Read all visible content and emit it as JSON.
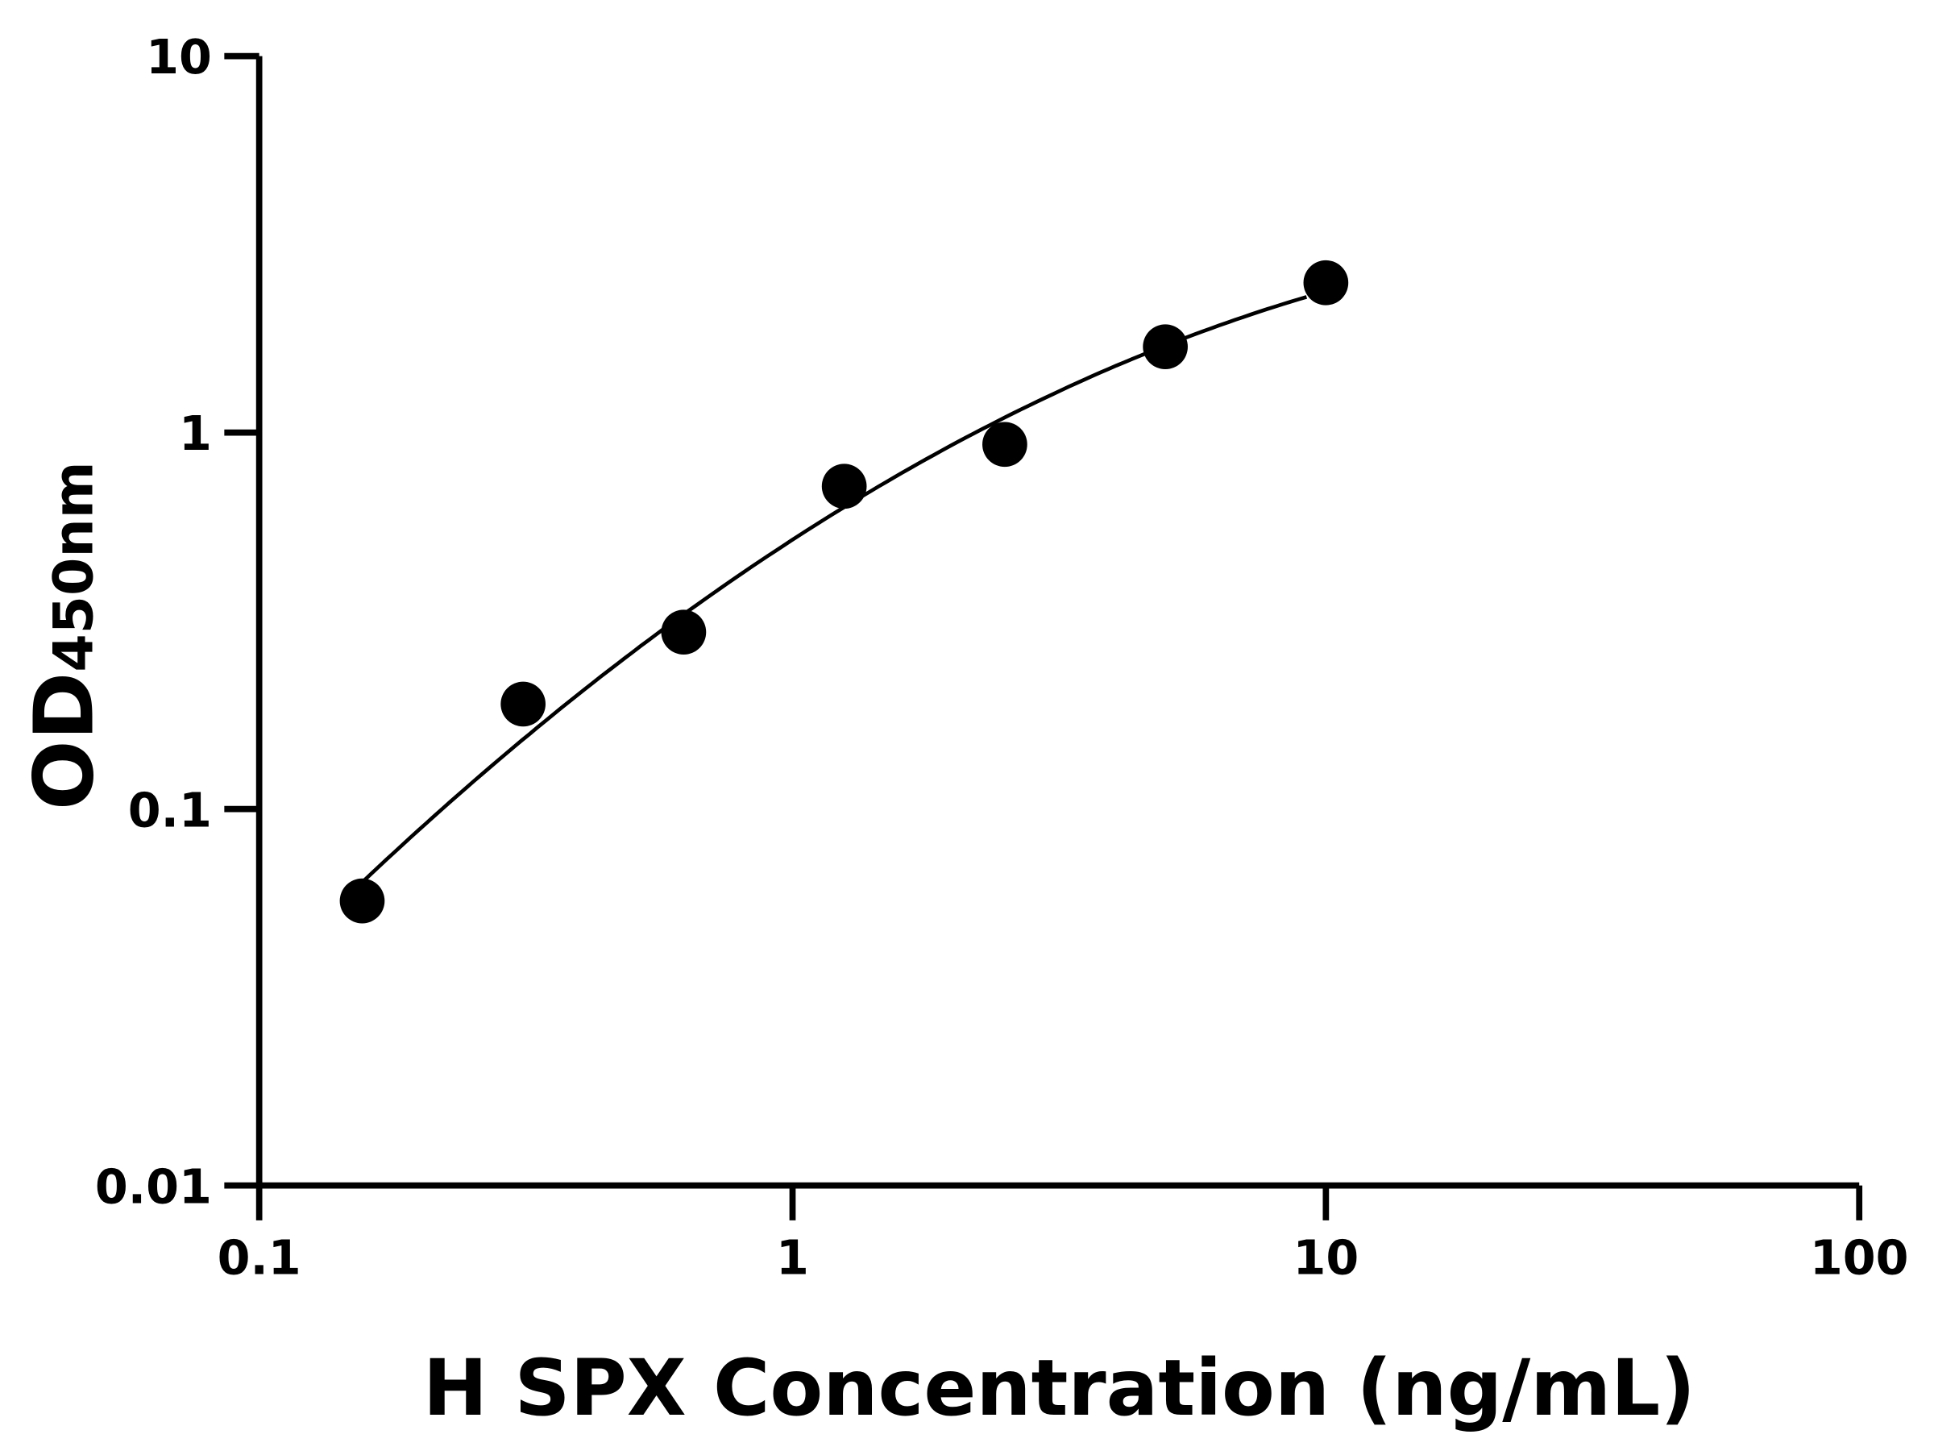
{
  "chart_data": {
    "type": "scatter",
    "title": "",
    "xlabel": "H SPX Concentration (ng/mL)",
    "ylabel_main": "OD",
    "ylabel_sub": "450nm",
    "x_scale": "log",
    "y_scale": "log",
    "xlim": [
      0.1,
      100
    ],
    "ylim": [
      0.01,
      10
    ],
    "x_ticks": [
      0.1,
      1,
      10,
      100
    ],
    "x_tick_labels": [
      "0.1",
      "1",
      "10",
      "100"
    ],
    "y_ticks": [
      0.01,
      0.1,
      1,
      10
    ],
    "y_tick_labels": [
      "0.01",
      "0.1",
      "1",
      "10"
    ],
    "grid": false,
    "legend": "none",
    "fit_curve": true,
    "color": "#000000",
    "series": [
      {
        "x": [
          0.156,
          0.3125,
          0.625,
          1.25,
          2.5,
          5,
          10
        ],
        "y": [
          0.057,
          0.19,
          0.295,
          0.72,
          0.93,
          1.69,
          2.5
        ]
      }
    ]
  }
}
